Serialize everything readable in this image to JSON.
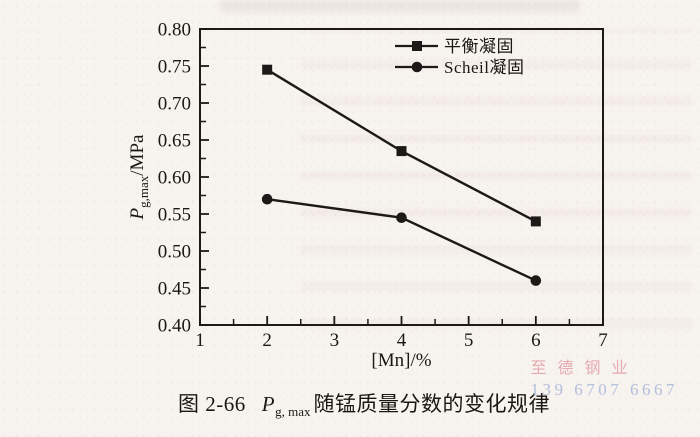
{
  "caption": {
    "figure_label": "图 2-66",
    "symbol": "P",
    "symbol_sub": "g, max",
    "text": "随锰质量分数的变化规律"
  },
  "watermark": {
    "company": "至德钢业",
    "phone": "139 6707 6667",
    "company_color": "#e298a0",
    "phone_color": "#a3b1d8"
  },
  "chart_data": {
    "type": "line",
    "x": [
      2,
      4,
      6
    ],
    "series": [
      {
        "name": "平衡凝固",
        "marker": "square",
        "values": [
          0.745,
          0.635,
          0.54
        ]
      },
      {
        "name": "Scheil凝固",
        "marker": "circle",
        "values": [
          0.57,
          0.545,
          0.46
        ]
      }
    ],
    "xlabel": "[Mn]/%",
    "ylabel_parts": {
      "symbol": "P",
      "sub": "g,max",
      "rest": "/MPa"
    },
    "xlim": [
      1,
      7
    ],
    "ylim": [
      0.4,
      0.8
    ],
    "x_major_ticks": [
      1,
      2,
      3,
      4,
      5,
      6,
      7
    ],
    "x_minor_step": 0.5,
    "y_major_ticks": [
      0.4,
      0.45,
      0.5,
      0.55,
      0.6,
      0.65,
      0.7,
      0.75,
      0.8
    ],
    "y_minor_step": 0.025,
    "grid": false,
    "legend_position": "top-center-inside",
    "line_color": "#1c1916",
    "text_color": "#1b1814"
  }
}
